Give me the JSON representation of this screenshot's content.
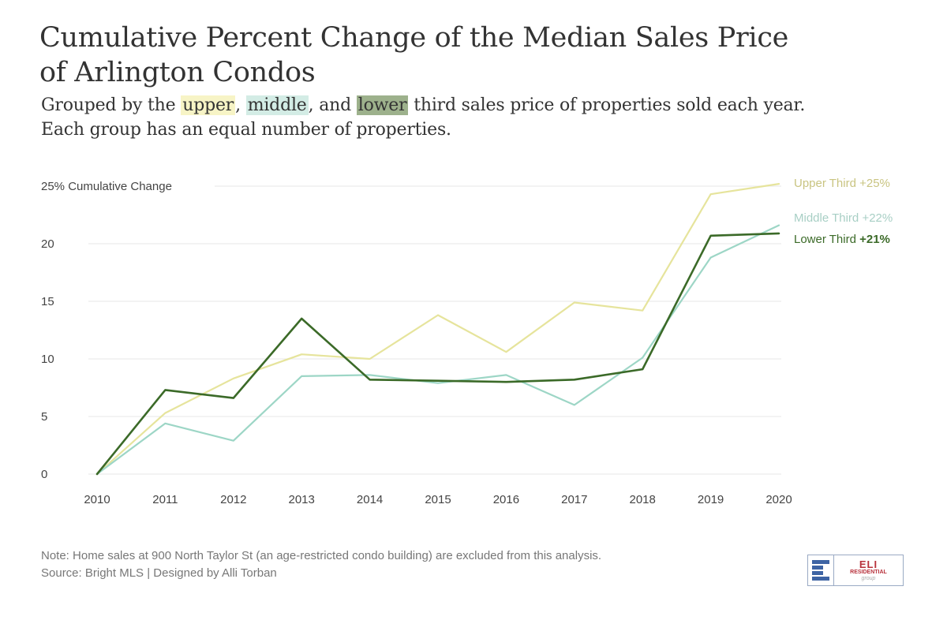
{
  "header": {
    "title_line1": "Cumulative Percent Change of the Median Sales Price",
    "title_line2": "of Arlington Condos",
    "subtitle_prefix": "Grouped by the ",
    "subtitle_upper": "upper",
    "subtitle_sep1": ", ",
    "subtitle_middle": "middle",
    "subtitle_sep2": ", and ",
    "subtitle_lower": "lower",
    "subtitle_suffix": " third sales price of properties sold each year.",
    "subtitle_line2": "Each group has an equal number of properties."
  },
  "footer": {
    "note": "Note: Home sales at 900 North Taylor St (an age-restricted condo building) are excluded from this analysis.",
    "source": "Source: Bright MLS | Designed by Alli Torban"
  },
  "logo": {
    "name": "ELI",
    "line2": "RESIDENTIAL",
    "line3": "group"
  },
  "colors": {
    "upper": "#e6e49c",
    "middle": "#9dd6c6",
    "lower": "#3b6a28",
    "upper_label": "#c9c481",
    "middle_label": "#a8cfc5",
    "lower_label": "#3b6a28",
    "grid": "#ececec"
  },
  "chart_data": {
    "type": "line",
    "title": "Cumulative Percent Change of the Median Sales Price of Arlington Condos",
    "ylabel": "25% Cumulative Change",
    "xlabel": "",
    "x": [
      "2010",
      "2011",
      "2012",
      "2013",
      "2014",
      "2015",
      "2016",
      "2017",
      "2018",
      "2019",
      "2020"
    ],
    "y_ticks": [
      {
        "value": 0,
        "label": "0"
      },
      {
        "value": 5,
        "label": "5"
      },
      {
        "value": 10,
        "label": "10"
      },
      {
        "value": 15,
        "label": "15"
      },
      {
        "value": 20,
        "label": "20"
      },
      {
        "value": 25,
        "label": "25% Cumulative Change"
      }
    ],
    "ylim": [
      0,
      25
    ],
    "grid": true,
    "legend": "direct labels at right end of lines",
    "series": [
      {
        "key": "upper",
        "name": "Upper Third",
        "end_label_name": "Upper Third ",
        "end_label_value": "+25%",
        "values": [
          0,
          5.3,
          8.3,
          10.4,
          10.0,
          13.8,
          10.6,
          14.9,
          14.2,
          24.3,
          25.2
        ]
      },
      {
        "key": "middle",
        "name": "Middle Third",
        "end_label_name": "Middle Third ",
        "end_label_value": "+22%",
        "values": [
          0,
          4.4,
          2.9,
          8.5,
          8.6,
          7.9,
          8.6,
          6.0,
          10.1,
          18.8,
          21.6
        ]
      },
      {
        "key": "lower",
        "name": "Lower Third",
        "end_label_name": "Lower Third ",
        "end_label_value": "+21%",
        "values": [
          0,
          7.3,
          6.6,
          13.5,
          8.2,
          8.1,
          8.0,
          8.2,
          9.1,
          20.7,
          20.9
        ]
      }
    ]
  }
}
